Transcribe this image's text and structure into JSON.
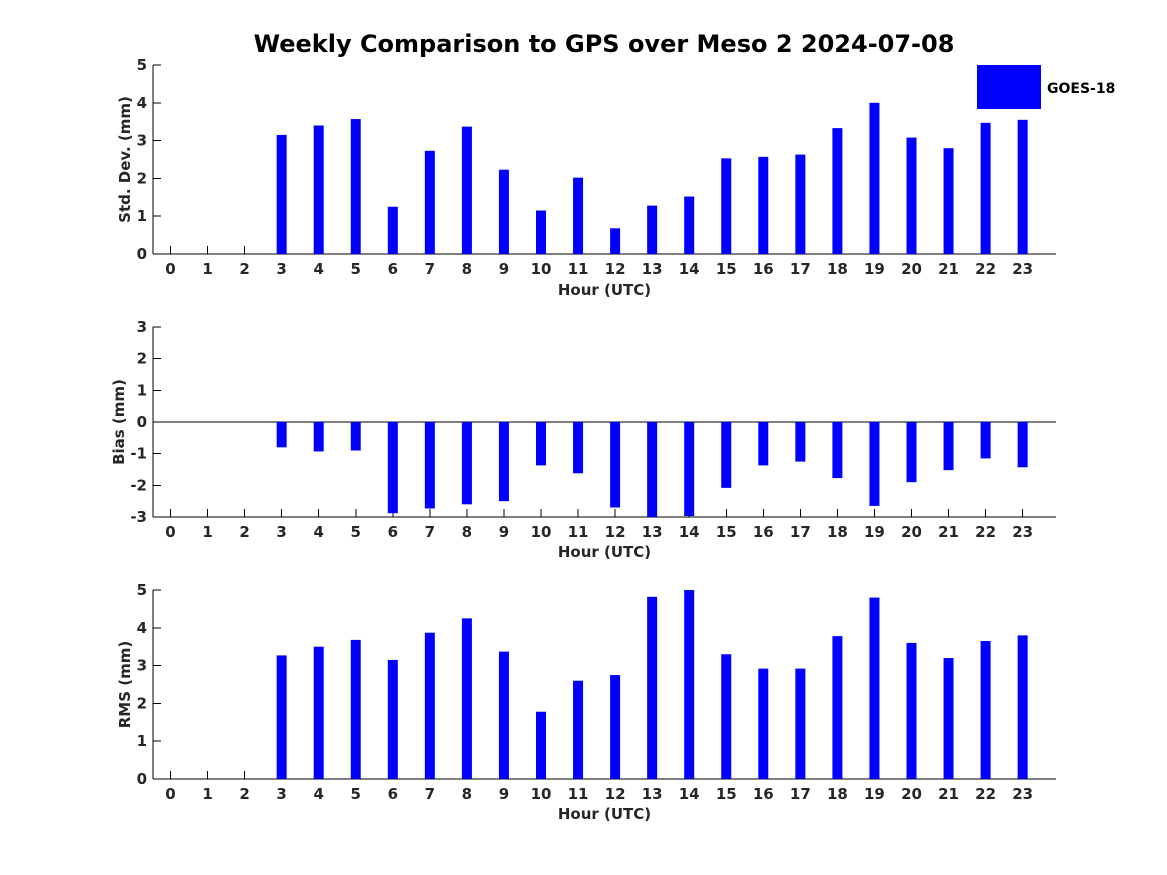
{
  "title": "Weekly Comparison to GPS over Meso 2 2024-07-08",
  "legend": {
    "label": "GOES-18",
    "color": "#0000ff"
  },
  "colors": {
    "bar": "#0000ff",
    "axis": "#000000"
  },
  "chart_data": [
    {
      "type": "bar",
      "title": "Weekly Comparison to GPS over Meso 2 2024-07-08",
      "xlabel": "Hour (UTC)",
      "ylabel": "Std. Dev. (mm)",
      "ylim": [
        0,
        5
      ],
      "yticks": [
        "0",
        "1",
        "2",
        "3",
        "4",
        "5"
      ],
      "categories": [
        "0",
        "1",
        "2",
        "3",
        "4",
        "5",
        "6",
        "7",
        "8",
        "9",
        "10",
        "11",
        "12",
        "13",
        "14",
        "15",
        "16",
        "17",
        "18",
        "19",
        "20",
        "21",
        "22",
        "23"
      ],
      "series": [
        {
          "name": "GOES-18",
          "values": [
            null,
            null,
            null,
            3.15,
            3.4,
            3.57,
            1.25,
            2.73,
            3.37,
            2.23,
            1.15,
            2.02,
            0.68,
            1.28,
            1.52,
            2.53,
            2.57,
            2.63,
            3.33,
            4.0,
            3.08,
            2.8,
            3.47,
            3.55
          ]
        }
      ],
      "legend": "top-right",
      "grid": false
    },
    {
      "type": "bar",
      "xlabel": "Hour (UTC)",
      "ylabel": "Bias (mm)",
      "ylim": [
        -3,
        3
      ],
      "yticks": [
        "-3",
        "-2",
        "-1",
        "0",
        "1",
        "2",
        "3"
      ],
      "categories": [
        "0",
        "1",
        "2",
        "3",
        "4",
        "5",
        "6",
        "7",
        "8",
        "9",
        "10",
        "11",
        "12",
        "13",
        "14",
        "15",
        "16",
        "17",
        "18",
        "19",
        "20",
        "21",
        "22",
        "23"
      ],
      "series": [
        {
          "name": "GOES-18",
          "values": [
            null,
            null,
            null,
            -0.8,
            -0.93,
            -0.9,
            -2.88,
            -2.73,
            -2.6,
            -2.5,
            -1.37,
            -1.62,
            -2.7,
            -3.0,
            -2.97,
            -2.08,
            -1.37,
            -1.25,
            -1.77,
            -2.65,
            -1.9,
            -1.52,
            -1.15,
            -1.43
          ]
        }
      ],
      "grid": false
    },
    {
      "type": "bar",
      "xlabel": "Hour (UTC)",
      "ylabel": "RMS (mm)",
      "ylim": [
        0,
        5
      ],
      "yticks": [
        "0",
        "1",
        "2",
        "3",
        "4",
        "5"
      ],
      "categories": [
        "0",
        "1",
        "2",
        "3",
        "4",
        "5",
        "6",
        "7",
        "8",
        "9",
        "10",
        "11",
        "12",
        "13",
        "14",
        "15",
        "16",
        "17",
        "18",
        "19",
        "20",
        "21",
        "22",
        "23"
      ],
      "series": [
        {
          "name": "GOES-18",
          "values": [
            null,
            null,
            null,
            3.27,
            3.5,
            3.68,
            3.15,
            3.87,
            4.25,
            3.37,
            1.78,
            2.6,
            2.75,
            4.82,
            5.0,
            3.3,
            2.92,
            2.92,
            3.78,
            4.8,
            3.6,
            3.2,
            3.65,
            3.8
          ]
        }
      ],
      "grid": false
    }
  ]
}
